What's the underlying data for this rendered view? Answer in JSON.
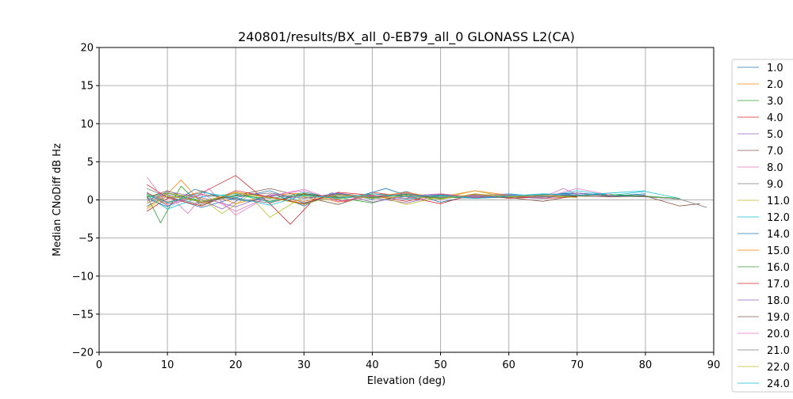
{
  "chart_data": {
    "type": "line",
    "title": "240801/results/BX_all_0-EB79_all_0 GLONASS L2(CA)",
    "xlabel": "Elevation (deg)",
    "ylabel": "Median CNoDiff dB Hz",
    "xlim": [
      0,
      90
    ],
    "ylim": [
      -20,
      20
    ],
    "xticks": [
      0,
      10,
      20,
      30,
      40,
      50,
      60,
      70,
      80,
      90
    ],
    "yticks": [
      -20,
      -15,
      -10,
      -5,
      0,
      5,
      10,
      15,
      20
    ],
    "grid": true,
    "legend_position": "right",
    "series": [
      {
        "name": "1.0",
        "color": "#1f77b4",
        "x": [
          7,
          10,
          15,
          20,
          25,
          30,
          35,
          40,
          45,
          50,
          55,
          60,
          65,
          70,
          75,
          80
        ],
        "y": [
          -0.8,
          0.5,
          -1.0,
          0.3,
          1.2,
          -0.4,
          0.8,
          0.1,
          1.1,
          -0.3,
          0.6,
          0.4,
          0.2,
          0.9,
          0.5,
          0.8
        ]
      },
      {
        "name": "2.0",
        "color": "#ff7f0e",
        "x": [
          7,
          10,
          15,
          20,
          25,
          30,
          35,
          40,
          45,
          50,
          55,
          60,
          65,
          70
        ],
        "y": [
          0.8,
          -0.6,
          1.2,
          -0.5,
          0.6,
          0.9,
          -0.3,
          0.5,
          0.2,
          0.7,
          0.3,
          0.6,
          0.4,
          0.5
        ]
      },
      {
        "name": "3.0",
        "color": "#2ca02c",
        "x": [
          7,
          9,
          12,
          15,
          20,
          25,
          30,
          35,
          40,
          45,
          50,
          55,
          60,
          65,
          70
        ],
        "y": [
          0.5,
          -3.0,
          1.8,
          -0.8,
          1.0,
          -0.2,
          0.7,
          0.3,
          -0.4,
          0.8,
          0.2,
          0.5,
          0.3,
          0.6,
          0.4
        ]
      },
      {
        "name": "4.0",
        "color": "#d62728",
        "x": [
          7,
          10,
          15,
          20,
          25,
          28,
          32,
          36,
          40,
          45,
          50,
          55,
          60,
          65,
          70
        ],
        "y": [
          -1.5,
          0.2,
          0.9,
          3.2,
          -0.5,
          -3.2,
          0.6,
          -0.2,
          1.0,
          0.4,
          -0.5,
          0.8,
          0.2,
          0.4,
          0.6
        ]
      },
      {
        "name": "5.0",
        "color": "#9467bd",
        "x": [
          7,
          10,
          14,
          18,
          22,
          26,
          30,
          35,
          40,
          45,
          50,
          55,
          60,
          65,
          70,
          75
        ],
        "y": [
          1.0,
          -0.8,
          0.4,
          -1.2,
          0.8,
          0.2,
          -0.6,
          0.9,
          0.3,
          -0.4,
          0.6,
          0.2,
          0.7,
          0.5,
          0.9,
          0.6
        ]
      },
      {
        "name": "7.0",
        "color": "#8c564b",
        "x": [
          7,
          10,
          15,
          20,
          25,
          30,
          35,
          40,
          45,
          50,
          55,
          60,
          65,
          70,
          75
        ],
        "y": [
          0.3,
          1.2,
          -0.4,
          0.6,
          1.5,
          0.4,
          -0.6,
          0.8,
          0.5,
          0.1,
          0.7,
          0.3,
          -0.2,
          0.6,
          0.9
        ]
      },
      {
        "name": "8.0",
        "color": "#e377c2",
        "x": [
          7,
          10,
          13,
          16,
          20,
          25,
          30,
          35,
          40,
          45,
          50,
          55,
          60,
          65,
          68,
          70
        ],
        "y": [
          -0.5,
          0.8,
          -1.8,
          1.5,
          -2.0,
          0.6,
          1.2,
          -0.2,
          0.5,
          0.9,
          0.3,
          0.6,
          0.8,
          0.4,
          1.5,
          0.7
        ]
      },
      {
        "name": "9.0",
        "color": "#7f7f7f",
        "x": [
          7,
          10,
          15,
          20,
          25,
          30,
          35,
          40,
          45,
          50,
          55,
          60
        ],
        "y": [
          1.5,
          0.4,
          -0.6,
          0.9,
          0.3,
          -0.5,
          0.6,
          0.2,
          0.8,
          0.4,
          0.2,
          0.5
        ]
      },
      {
        "name": "11.0",
        "color": "#bcbd22",
        "x": [
          7,
          10,
          15,
          18,
          22,
          25,
          30,
          35,
          40,
          45,
          50,
          55,
          60,
          65
        ],
        "y": [
          -0.4,
          0.9,
          0.2,
          -1.8,
          0.6,
          -2.3,
          0.5,
          0.1,
          0.7,
          -0.6,
          0.4,
          1.2,
          0.3,
          0.6
        ]
      },
      {
        "name": "12.0",
        "color": "#17becf",
        "x": [
          7,
          10,
          15,
          20,
          25,
          30,
          35,
          40,
          45,
          50,
          55,
          60,
          65,
          70,
          75,
          80,
          85
        ],
        "y": [
          0.6,
          -1.2,
          0.4,
          0.8,
          -0.3,
          1.0,
          0.2,
          0.6,
          0.1,
          0.5,
          0.3,
          0.8,
          0.4,
          1.2,
          0.6,
          1.1,
          0.2
        ]
      },
      {
        "name": "14.0",
        "color": "#1f77b4",
        "x": [
          7,
          10,
          14,
          18,
          22,
          26,
          30,
          34,
          38,
          42,
          46,
          50,
          55,
          60,
          65,
          70,
          75,
          80
        ],
        "y": [
          0.2,
          -0.9,
          1.4,
          0.3,
          -0.2,
          0.6,
          -0.8,
          0.9,
          0.5,
          1.5,
          0.3,
          0.6,
          0.2,
          0.4,
          0.7,
          0.9,
          0.5,
          0.6
        ]
      },
      {
        "name": "15.0",
        "color": "#ff7f0e",
        "x": [
          7,
          10,
          12,
          15,
          20,
          25,
          30,
          35,
          40,
          45,
          50,
          55,
          60,
          65
        ],
        "y": [
          -1.0,
          0.8,
          2.6,
          -0.4,
          1.0,
          0.3,
          -0.2,
          0.7,
          0.4,
          1.0,
          0.2,
          1.2,
          0.6,
          0.3
        ]
      },
      {
        "name": "16.0",
        "color": "#2ca02c",
        "x": [
          7,
          10,
          15,
          20,
          25,
          30,
          35,
          40,
          45,
          50,
          55,
          60,
          65,
          70,
          75,
          80,
          85
        ],
        "y": [
          0.4,
          0.9,
          -0.2,
          0.6,
          0.2,
          0.8,
          0.4,
          0.3,
          0.7,
          0.2,
          0.5,
          0.6,
          0.4,
          0.5,
          0.7,
          0.5,
          0.2
        ]
      },
      {
        "name": "17.0",
        "color": "#d62728",
        "x": [
          7,
          10,
          15,
          20,
          25,
          30,
          35,
          40,
          45,
          50,
          55,
          60,
          65,
          70
        ],
        "y": [
          2.0,
          0.3,
          -0.8,
          1.2,
          0.4,
          -0.5,
          1.0,
          0.6,
          -0.2,
          0.8,
          0.3,
          0.5,
          0.2,
          0.4
        ]
      },
      {
        "name": "18.0",
        "color": "#9467bd",
        "x": [
          7,
          10,
          15,
          20,
          25,
          30,
          35,
          40,
          45,
          50,
          55,
          60,
          65,
          70,
          75
        ],
        "y": [
          -0.2,
          1.1,
          0.3,
          -0.9,
          0.7,
          0.2,
          0.9,
          -0.3,
          0.5,
          0.8,
          0.3,
          0.6,
          0.2,
          0.9,
          0.4
        ]
      },
      {
        "name": "19.0",
        "color": "#8c564b",
        "x": [
          7,
          10,
          15,
          20,
          25,
          30,
          35,
          40,
          45,
          50,
          55,
          60,
          65,
          70,
          75,
          80,
          85,
          88
        ],
        "y": [
          0.9,
          -0.3,
          0.7,
          0.2,
          -0.4,
          0.8,
          0.3,
          0.5,
          0.2,
          0.7,
          0.4,
          0.3,
          0.6,
          0.5,
          0.4,
          0.5,
          -0.8,
          -0.5
        ]
      },
      {
        "name": "20.0",
        "color": "#e377c2",
        "x": [
          7,
          10,
          15,
          20,
          25,
          30,
          35,
          40,
          45,
          50,
          55,
          60,
          65,
          70,
          75
        ],
        "y": [
          3.0,
          -0.6,
          0.8,
          -1.5,
          0.5,
          1.4,
          -0.2,
          0.6,
          0.2,
          0.8,
          0.4,
          0.7,
          0.3,
          1.5,
          0.6
        ]
      },
      {
        "name": "21.0",
        "color": "#7f7f7f",
        "x": [
          7,
          10,
          15,
          20,
          25,
          30,
          35,
          40,
          45,
          50,
          55,
          60,
          65,
          70,
          75,
          80,
          85,
          89
        ],
        "y": [
          0.1,
          0.7,
          -0.3,
          0.5,
          0.9,
          0.2,
          0.6,
          0.4,
          0.8,
          0.3,
          0.5,
          0.6,
          0.4,
          0.7,
          0.5,
          0.4,
          0.1,
          -1.0
        ]
      },
      {
        "name": "22.0",
        "color": "#bcbd22",
        "x": [
          7,
          10,
          15,
          20,
          25,
          30,
          35,
          40,
          45,
          50,
          55,
          60,
          65,
          70
        ],
        "y": [
          -1.2,
          0.5,
          -0.2,
          0.9,
          0.3,
          -0.6,
          0.7,
          0.2,
          0.5,
          0.1,
          0.8,
          0.4,
          0.6,
          0.3
        ]
      },
      {
        "name": "24.0",
        "color": "#17becf",
        "x": [
          7,
          10,
          15,
          20,
          25,
          30,
          35,
          40,
          45,
          50,
          55,
          60,
          65,
          70,
          75,
          80
        ],
        "y": [
          0.7,
          -0.4,
          1.0,
          0.3,
          -0.7,
          0.6,
          0.2,
          0.8,
          0.4,
          0.6,
          0.2,
          0.5,
          0.8,
          0.6,
          0.9,
          1.2
        ]
      }
    ]
  }
}
